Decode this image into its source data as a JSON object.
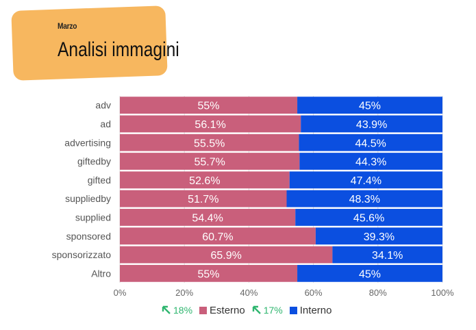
{
  "header": {
    "subtitle": "Marzo",
    "title": "Analisi immagini"
  },
  "colors": {
    "esterno": "#c95f7b",
    "interno": "#0b4fe0",
    "trend": "#2fb66f",
    "grid": "#dcdcdc"
  },
  "legend": {
    "esterno_trend": "18%",
    "esterno_label": "Esterno",
    "interno_trend": "17%",
    "interno_label": "Interno"
  },
  "chart_data": {
    "type": "bar",
    "orientation": "horizontal",
    "stacked": true,
    "categories": [
      "adv",
      "ad",
      "advertising",
      "giftedby",
      "gifted",
      "suppliedby",
      "supplied",
      "sponsored",
      "sponsorizzato",
      "Altro"
    ],
    "series": [
      {
        "name": "Esterno",
        "values": [
          55,
          56.1,
          55.5,
          55.7,
          52.6,
          51.7,
          54.4,
          60.7,
          65.9,
          55
        ],
        "labels": [
          "55%",
          "56.1%",
          "55.5%",
          "55.7%",
          "52.6%",
          "51.7%",
          "54.4%",
          "60.7%",
          "65.9%",
          "55%"
        ]
      },
      {
        "name": "Interno",
        "values": [
          45,
          43.9,
          44.5,
          44.3,
          47.4,
          48.3,
          45.6,
          39.3,
          34.1,
          45
        ],
        "labels": [
          "45%",
          "43.9%",
          "44.5%",
          "44.3%",
          "47.4%",
          "48.3%",
          "45.6%",
          "39.3%",
          "34.1%",
          "45%"
        ]
      }
    ],
    "xlim": [
      0,
      100
    ],
    "xticks": [
      "0%",
      "20%",
      "40%",
      "60%",
      "80%",
      "100%"
    ],
    "grid": true,
    "legend_position": "bottom"
  }
}
